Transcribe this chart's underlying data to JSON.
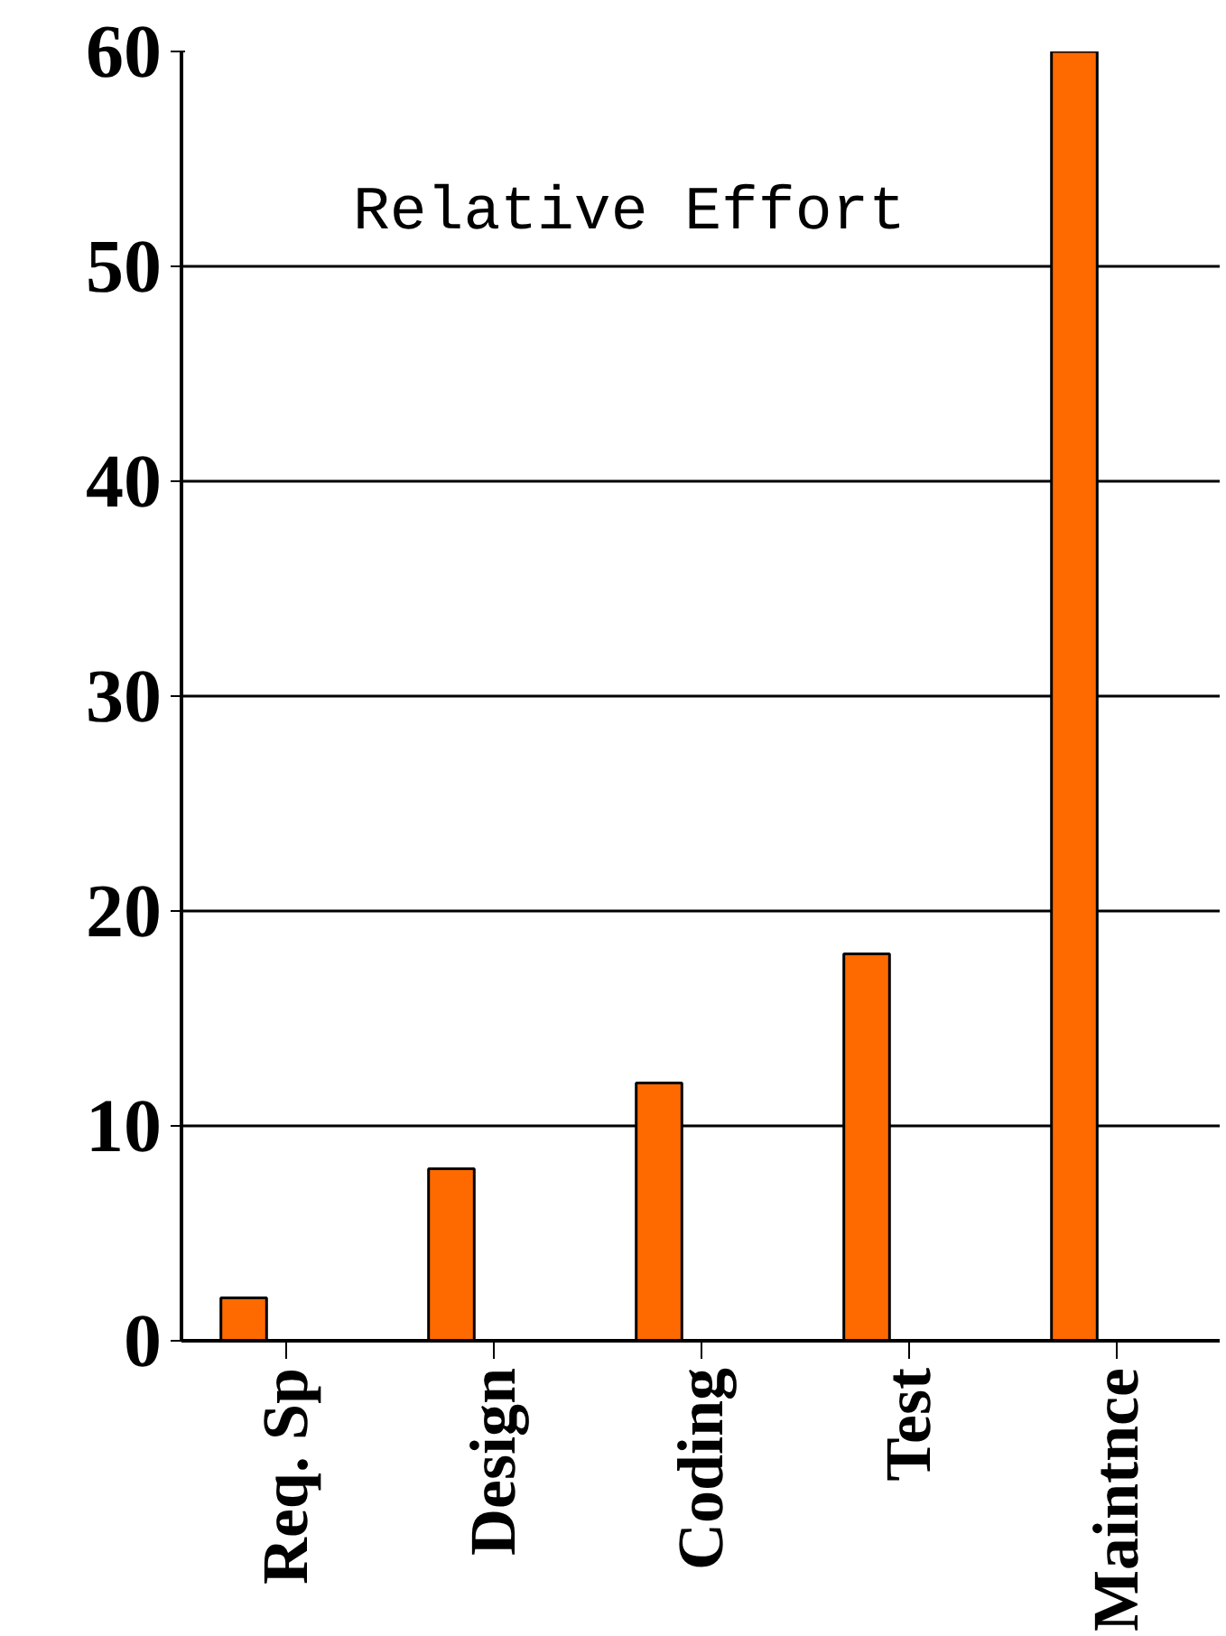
{
  "chart_data": {
    "type": "bar",
    "categories": [
      "Req. Sp",
      "Design",
      "Coding",
      "Test",
      "Maintnce"
    ],
    "values": [
      2,
      8,
      12,
      18,
      60
    ],
    "color": "#ff6a00",
    "ylim": [
      0,
      60
    ],
    "yticks": [
      0,
      10,
      20,
      30,
      40,
      50,
      60
    ],
    "grid": "y",
    "annotations": [
      "Relative Effort"
    ]
  }
}
